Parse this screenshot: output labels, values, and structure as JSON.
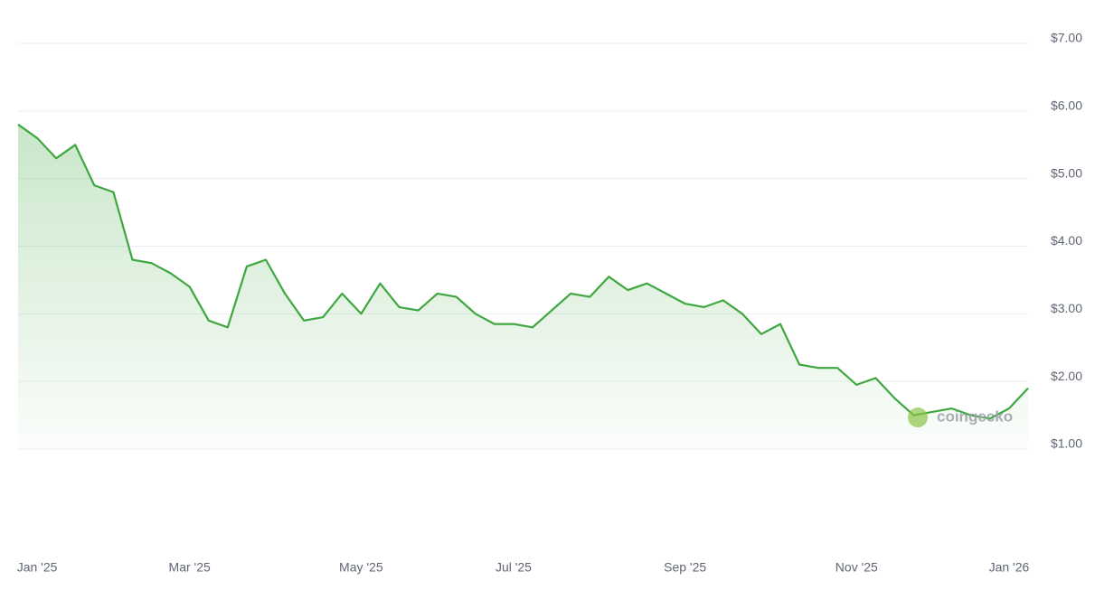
{
  "chart_data": {
    "type": "line",
    "watermark": "coingecko",
    "color": "#3fa73f",
    "categories": [
      null,
      "Jan '25",
      null,
      null,
      null,
      null,
      null,
      null,
      null,
      "Mar '25",
      null,
      null,
      null,
      null,
      null,
      null,
      null,
      null,
      "May '25",
      null,
      null,
      null,
      null,
      null,
      null,
      null,
      "Jul '25",
      null,
      null,
      null,
      null,
      null,
      null,
      null,
      null,
      "Sep '25",
      null,
      null,
      null,
      null,
      null,
      null,
      null,
      null,
      "Nov '25",
      null,
      null,
      null,
      null,
      null,
      null,
      null,
      "Jan '26",
      null
    ],
    "values": [
      5.8,
      5.6,
      5.3,
      5.5,
      4.9,
      4.8,
      3.8,
      3.75,
      3.6,
      3.4,
      2.9,
      2.8,
      3.7,
      3.8,
      3.3,
      2.9,
      2.95,
      3.3,
      3.0,
      3.45,
      3.1,
      3.05,
      3.3,
      3.25,
      3.0,
      2.85,
      2.85,
      2.8,
      3.05,
      3.3,
      3.25,
      3.55,
      3.35,
      3.45,
      3.3,
      3.15,
      3.1,
      3.2,
      3.0,
      2.7,
      2.85,
      2.25,
      2.2,
      2.2,
      1.95,
      2.05,
      1.75,
      1.5,
      1.55,
      1.6,
      1.5,
      1.45,
      1.6,
      1.9
    ],
    "ylim": [
      1,
      7
    ],
    "yticks": [
      {
        "value": 1,
        "label": "$1.00"
      },
      {
        "value": 2,
        "label": "$2.00"
      },
      {
        "value": 3,
        "label": "$3.00"
      },
      {
        "value": 4,
        "label": "$4.00"
      },
      {
        "value": 5,
        "label": "$5.00"
      },
      {
        "value": 6,
        "label": "$6.00"
      },
      {
        "value": 7,
        "label": "$7.00"
      }
    ],
    "grid": true
  }
}
